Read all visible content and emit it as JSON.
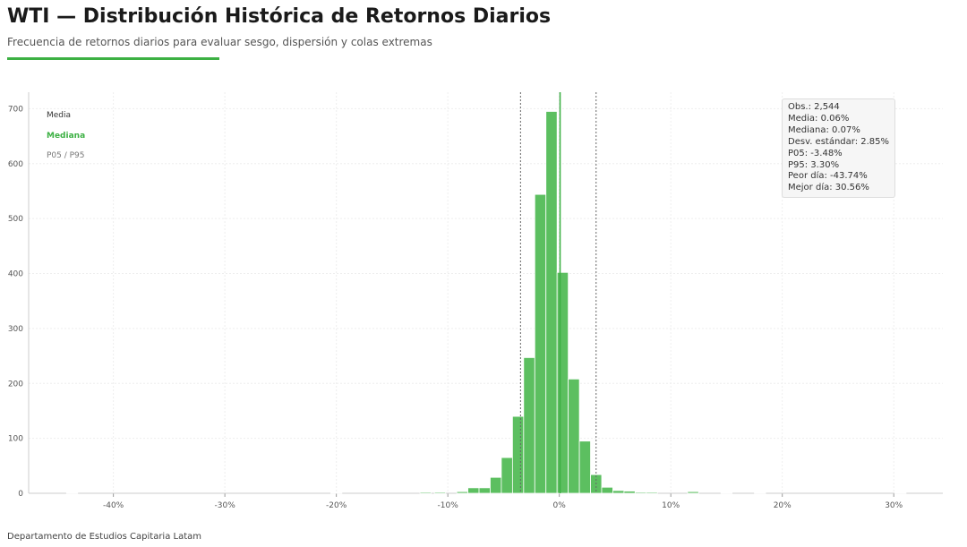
{
  "header": {
    "title": "WTI — Distribución Histórica de Retornos Diarios",
    "subtitle": "Frecuencia de retornos diarios para evaluar sesgo, dispersión y colas extremas"
  },
  "footer": "Departamento de Estudios Capitaria Latam",
  "colors": {
    "accent": "#3cb043",
    "bar": "#5cbf60",
    "mean": "#333333",
    "median": "#3cb043",
    "percentile": "#666666"
  },
  "legend": {
    "mean": "Media",
    "median": "Mediana",
    "percentiles": "P05 / P95"
  },
  "stats": [
    "Obs.: 2,544",
    "Media: 0.06%",
    "Mediana: 0.07%",
    "Desv. estándar: 2.85%",
    "P05: -3.48%",
    "P95: 3.30%",
    "Peor día: -43.74%",
    "Mejor día: 30.56%"
  ],
  "chart_data": {
    "type": "bar",
    "title": "WTI — Distribución Histórica de Retornos Diarios",
    "xlabel": "",
    "ylabel": "",
    "bin_width_pct": 1,
    "bin_centers_pct": [
      -43.7,
      -20,
      -12,
      -10.7,
      -8.7,
      -7.7,
      -6.7,
      -5.7,
      -4.7,
      -3.7,
      -2.7,
      -1.7,
      -0.7,
      0.3,
      1.3,
      2.3,
      3.3,
      4.3,
      5.3,
      6.3,
      7.3,
      8.3,
      12,
      15,
      18,
      30.6
    ],
    "counts": [
      1,
      1,
      2,
      2,
      3,
      10,
      10,
      29,
      65,
      140,
      247,
      544,
      695,
      402,
      208,
      95,
      34,
      11,
      5,
      4,
      2,
      2,
      3,
      1,
      1,
      1
    ],
    "xlim": [
      -47.6,
      34.4
    ],
    "ylim": [
      0,
      730
    ],
    "xticks": [
      "-40%",
      "-30%",
      "-20%",
      "-10%",
      "0%",
      "10%",
      "20%",
      "30%"
    ],
    "xtick_values": [
      -40,
      -30,
      -20,
      -10,
      0,
      10,
      20,
      30
    ],
    "yticks": [
      0,
      100,
      200,
      300,
      400,
      500,
      600,
      700
    ],
    "vlines": {
      "mean": 0.06,
      "median": 0.07,
      "p05": -3.48,
      "p95": 3.3
    },
    "grid": true,
    "legend_position": "top-left"
  }
}
